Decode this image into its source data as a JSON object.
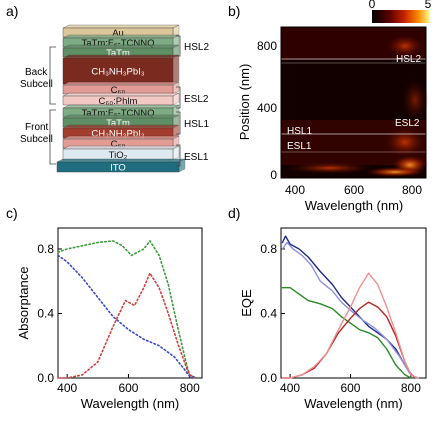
{
  "panels": {
    "a": {
      "letter": "a)"
    },
    "b": {
      "letter": "b)"
    },
    "c": {
      "letter": "c)"
    },
    "d": {
      "letter": "d)"
    }
  },
  "stack": {
    "layers": [
      {
        "label": "Au",
        "color": "#dcc79a"
      },
      {
        "label": "TaTm:F₆-TCNNQ",
        "color": "#7fab84"
      },
      {
        "label": "TaTm",
        "color": "#5f8f64"
      },
      {
        "label": "CH₃NH₃PbI₃",
        "color": "#7a2a1f"
      },
      {
        "label": "C₆₀",
        "color": "#e39c95"
      },
      {
        "label": "C₆₀:Phlm",
        "color": "#f2c9c4"
      },
      {
        "label": "TaTm:F₆-TCNNQ",
        "color": "#7fab84"
      },
      {
        "label": "TaTm",
        "color": "#5f8f64"
      },
      {
        "label": "CH₃NH₃PbI₃",
        "color": "#a23d2d"
      },
      {
        "label": "C₆₀",
        "color": "#e39c95"
      },
      {
        "label": "TiO₂",
        "color": "#dfe9f1"
      },
      {
        "label": "ITO",
        "color": "#1f6e80"
      }
    ],
    "side_labels": {
      "back_subcell": [
        "Back",
        "Subcell"
      ],
      "front_subcell": [
        "Front",
        "Subcell"
      ],
      "hsl2": "HSL2",
      "esl2": "ESL2",
      "hsl1": "HSL1",
      "esl1": "ESL1"
    }
  },
  "heatmap": {
    "colorbar_ticks": [
      "0",
      "5"
    ],
    "xlabel": "Wavelength (nm)",
    "ylabel": "Position (nm)",
    "xticks": [
      "400",
      "600",
      "800"
    ],
    "yticks": [
      "0",
      "400",
      "800"
    ],
    "annotations": [
      "HSL2",
      "ESL2",
      "HSL1",
      "ESL1"
    ]
  },
  "chart_data": [
    {
      "type": "line",
      "xlabel": "Wavelength (nm)",
      "ylabel": "Absorptance",
      "xlim": [
        370,
        840
      ],
      "ylim": [
        0.0,
        0.93
      ],
      "xticks": [
        "400",
        "600",
        "800"
      ],
      "yticks": [
        "0.0",
        "0.4",
        "0.8"
      ],
      "series": [
        {
          "color": "#3a9a3a",
          "style": "dotted",
          "x": [
            370,
            400,
            450,
            500,
            550,
            580,
            610,
            650,
            670,
            700,
            730,
            760,
            790,
            800,
            820
          ],
          "y": [
            0.78,
            0.8,
            0.82,
            0.84,
            0.85,
            0.82,
            0.76,
            0.8,
            0.85,
            0.76,
            0.58,
            0.32,
            0.08,
            0.02,
            0.0
          ]
        },
        {
          "color": "#3a48c8",
          "style": "dotted",
          "x": [
            370,
            400,
            450,
            500,
            550,
            600,
            650,
            700,
            750,
            780,
            800,
            820
          ],
          "y": [
            0.76,
            0.72,
            0.62,
            0.5,
            0.38,
            0.3,
            0.24,
            0.2,
            0.13,
            0.06,
            0.01,
            0.0
          ]
        },
        {
          "color": "#d63c3c",
          "style": "dotted",
          "x": [
            370,
            400,
            450,
            500,
            550,
            590,
            620,
            650,
            670,
            700,
            730,
            760,
            790,
            800,
            820
          ],
          "y": [
            0.0,
            0.0,
            0.02,
            0.1,
            0.32,
            0.48,
            0.45,
            0.56,
            0.65,
            0.56,
            0.4,
            0.22,
            0.06,
            0.02,
            0.0
          ]
        }
      ]
    },
    {
      "type": "line",
      "xlabel": "Wavelength (nm)",
      "ylabel": "EQE",
      "xlim": [
        370,
        850
      ],
      "ylim": [
        0.0,
        0.93
      ],
      "xticks": [
        "400",
        "600",
        "800"
      ],
      "yticks": [
        "0.0",
        "0.4",
        "0.8"
      ],
      "series": [
        {
          "color": "#1f2a8c",
          "style": "solid",
          "x": [
            375,
            385,
            400,
            430,
            460,
            500,
            540,
            570,
            600,
            630,
            660,
            690,
            720,
            750,
            780,
            800,
            820
          ],
          "y": [
            0.84,
            0.88,
            0.83,
            0.8,
            0.75,
            0.66,
            0.58,
            0.5,
            0.44,
            0.38,
            0.32,
            0.28,
            0.24,
            0.18,
            0.08,
            0.02,
            0.0
          ]
        },
        {
          "color": "#8f93d6",
          "style": "solid",
          "x": [
            375,
            390,
            410,
            440,
            470,
            500,
            540,
            570,
            600,
            640,
            680,
            720,
            760,
            790,
            810,
            825
          ],
          "y": [
            0.8,
            0.84,
            0.8,
            0.76,
            0.7,
            0.6,
            0.54,
            0.47,
            0.42,
            0.36,
            0.31,
            0.24,
            0.14,
            0.05,
            0.01,
            0.0
          ]
        },
        {
          "color": "#2a8a2a",
          "style": "solid",
          "x": [
            375,
            400,
            430,
            460,
            500,
            540,
            570,
            600,
            630,
            660,
            690,
            720,
            750,
            780,
            800
          ],
          "y": [
            0.56,
            0.56,
            0.52,
            0.48,
            0.46,
            0.43,
            0.38,
            0.34,
            0.3,
            0.28,
            0.25,
            0.18,
            0.08,
            0.02,
            0.0
          ]
        },
        {
          "color": "#b82424",
          "style": "solid",
          "x": [
            375,
            400,
            440,
            480,
            520,
            560,
            600,
            630,
            660,
            690,
            720,
            750,
            780,
            800,
            820
          ],
          "y": [
            0.0,
            0.0,
            0.02,
            0.06,
            0.15,
            0.28,
            0.37,
            0.43,
            0.47,
            0.44,
            0.38,
            0.26,
            0.1,
            0.02,
            0.0
          ]
        },
        {
          "color": "#f09090",
          "style": "solid",
          "x": [
            375,
            400,
            440,
            480,
            520,
            560,
            600,
            630,
            660,
            690,
            720,
            750,
            780,
            800,
            820
          ],
          "y": [
            0.0,
            0.0,
            0.02,
            0.07,
            0.15,
            0.3,
            0.44,
            0.56,
            0.65,
            0.58,
            0.44,
            0.28,
            0.1,
            0.02,
            0.0
          ]
        }
      ]
    }
  ]
}
